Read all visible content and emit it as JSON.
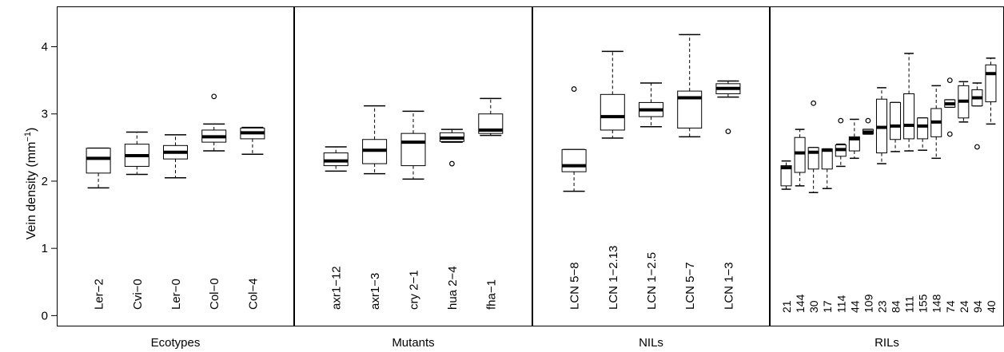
{
  "chart_data": {
    "type": "box",
    "ylabel_main": "Vein density (mm",
    "ylabel_sup": "−1",
    "ylabel_close": ")",
    "ylim": [
      -0.15,
      4.6
    ],
    "yticks": [
      "0",
      "1",
      "2",
      "3",
      "4"
    ],
    "ytick_values": [
      0,
      1,
      2,
      3,
      4
    ],
    "grid": false,
    "panels": [
      {
        "name": "Ecotypes",
        "groups": [
          {
            "label": "Ler−2",
            "min": 1.9,
            "q1": 2.12,
            "median": 2.34,
            "q3": 2.49,
            "max": 2.49,
            "outliers": []
          },
          {
            "label": "Cvi−0",
            "min": 2.1,
            "q1": 2.22,
            "median": 2.38,
            "q3": 2.55,
            "max": 2.73,
            "outliers": []
          },
          {
            "label": "Ler−0",
            "min": 2.05,
            "q1": 2.33,
            "median": 2.43,
            "q3": 2.53,
            "max": 2.69,
            "outliers": []
          },
          {
            "label": "Col−0",
            "min": 2.45,
            "q1": 2.58,
            "median": 2.66,
            "q3": 2.76,
            "max": 2.85,
            "outliers": [
              3.26
            ]
          },
          {
            "label": "Col−4",
            "min": 2.4,
            "q1": 2.63,
            "median": 2.72,
            "q3": 2.79,
            "max": 2.8,
            "outliers": []
          }
        ]
      },
      {
        "name": "Mutants",
        "groups": [
          {
            "label": "axr1−12",
            "min": 2.15,
            "q1": 2.23,
            "median": 2.3,
            "q3": 2.42,
            "max": 2.51,
            "outliers": []
          },
          {
            "label": "axr1−3",
            "min": 2.11,
            "q1": 2.26,
            "median": 2.46,
            "q3": 2.62,
            "max": 3.12,
            "outliers": []
          },
          {
            "label": "cry 2−1",
            "min": 2.03,
            "q1": 2.23,
            "median": 2.58,
            "q3": 2.71,
            "max": 3.04,
            "outliers": []
          },
          {
            "label": "hua 2−4",
            "min": 2.58,
            "q1": 2.59,
            "median": 2.64,
            "q3": 2.72,
            "max": 2.77,
            "outliers": [
              2.26
            ]
          },
          {
            "label": "fha−1",
            "min": 2.68,
            "q1": 2.71,
            "median": 2.76,
            "q3": 3.0,
            "max": 3.23,
            "outliers": []
          }
        ]
      },
      {
        "name": "NILs",
        "groups": [
          {
            "label": "LCN 5−8",
            "min": 1.85,
            "q1": 2.14,
            "median": 2.23,
            "q3": 2.47,
            "max": 2.47,
            "outliers": [
              3.37
            ]
          },
          {
            "label": "LCN 1−2.13",
            "min": 2.64,
            "q1": 2.76,
            "median": 2.96,
            "q3": 3.29,
            "max": 3.93,
            "outliers": []
          },
          {
            "label": "LCN 1−2.5",
            "min": 2.81,
            "q1": 2.96,
            "median": 3.06,
            "q3": 3.17,
            "max": 3.46,
            "outliers": []
          },
          {
            "label": "LCN 5−7",
            "min": 2.66,
            "q1": 2.79,
            "median": 3.24,
            "q3": 3.34,
            "max": 4.18,
            "outliers": []
          },
          {
            "label": "LCN 1−3",
            "min": 3.25,
            "q1": 3.3,
            "median": 3.38,
            "q3": 3.45,
            "max": 3.49,
            "outliers": [
              2.74
            ]
          }
        ]
      },
      {
        "name": "RILs",
        "groups": [
          {
            "label": "21",
            "min": 1.88,
            "q1": 1.93,
            "median": 2.2,
            "q3": 2.23,
            "max": 2.3,
            "outliers": []
          },
          {
            "label": "144",
            "min": 1.93,
            "q1": 2.13,
            "median": 2.42,
            "q3": 2.65,
            "max": 2.77,
            "outliers": []
          },
          {
            "label": "30",
            "min": 1.83,
            "q1": 2.18,
            "median": 2.43,
            "q3": 2.5,
            "max": 2.5,
            "outliers": [
              3.16
            ]
          },
          {
            "label": "17",
            "min": 1.89,
            "q1": 2.18,
            "median": 2.46,
            "q3": 2.48,
            "max": 2.48,
            "outliers": []
          },
          {
            "label": "114",
            "min": 2.22,
            "q1": 2.37,
            "median": 2.47,
            "q3": 2.54,
            "max": 2.55,
            "outliers": [
              2.9
            ]
          },
          {
            "label": "44",
            "min": 2.34,
            "q1": 2.45,
            "median": 2.63,
            "q3": 2.66,
            "max": 2.92,
            "outliers": []
          },
          {
            "label": "109",
            "min": 2.7,
            "q1": 2.7,
            "median": 2.73,
            "q3": 2.77,
            "max": 2.77,
            "outliers": [
              2.9
            ]
          },
          {
            "label": "23",
            "min": 2.26,
            "q1": 2.42,
            "median": 2.8,
            "q3": 3.22,
            "max": 3.39,
            "outliers": []
          },
          {
            "label": "84",
            "min": 2.44,
            "q1": 2.62,
            "median": 2.82,
            "q3": 3.17,
            "max": 3.17,
            "outliers": []
          },
          {
            "label": "111",
            "min": 2.45,
            "q1": 2.63,
            "median": 2.83,
            "q3": 3.3,
            "max": 3.9,
            "outliers": []
          },
          {
            "label": "155",
            "min": 2.46,
            "q1": 2.63,
            "median": 2.82,
            "q3": 2.94,
            "max": 2.94,
            "outliers": []
          },
          {
            "label": "148",
            "min": 2.34,
            "q1": 2.66,
            "median": 2.88,
            "q3": 3.08,
            "max": 3.42,
            "outliers": []
          },
          {
            "label": "74",
            "min": 3.1,
            "q1": 3.1,
            "median": 3.15,
            "q3": 3.21,
            "max": 3.21,
            "outliers": [
              3.5,
              2.7
            ]
          },
          {
            "label": "24",
            "min": 2.88,
            "q1": 2.94,
            "median": 3.19,
            "q3": 3.42,
            "max": 3.48,
            "outliers": []
          },
          {
            "label": "94",
            "min": 3.12,
            "q1": 3.12,
            "median": 3.24,
            "q3": 3.36,
            "max": 3.46,
            "outliers": [
              2.51
            ]
          },
          {
            "label": "40",
            "min": 2.85,
            "q1": 3.18,
            "median": 3.6,
            "q3": 3.73,
            "max": 3.83,
            "outliers": []
          }
        ]
      }
    ]
  }
}
